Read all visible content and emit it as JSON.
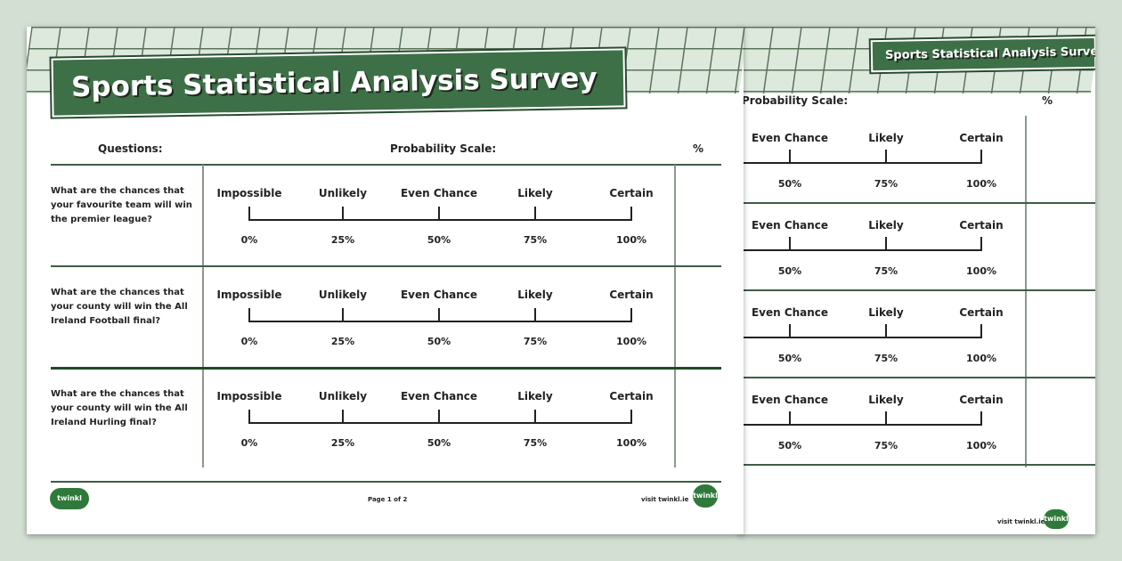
{
  "title": "Sports Statistical Analysis Survey",
  "headers": {
    "questions": "Questions:",
    "scale": "Probability Scale:",
    "percent": "%"
  },
  "scale_labels": [
    "Impossible",
    "Unlikely",
    "Even Chance",
    "Likely",
    "Certain"
  ],
  "scale_percents": [
    "0%",
    "25%",
    "50%",
    "75%",
    "100%"
  ],
  "questions": [
    "What are the chances that your favourite team will win the premier league?",
    "What are the chances that your county will win the All Ireland Football final?",
    "What are the chances that your county will win the All Ireland Hurling final?"
  ],
  "footer": {
    "logo": "twinkl",
    "page": "Page 1 of 2",
    "visit": "visit twinkl.ie"
  },
  "colors": {
    "brand": "#3e7048",
    "background": "#d3dfd3"
  }
}
